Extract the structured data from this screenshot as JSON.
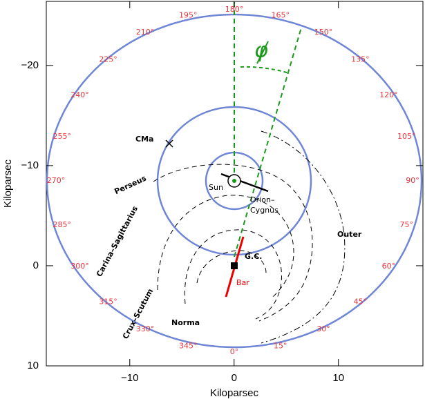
{
  "chart_data": {
    "type": "galaxy-map",
    "xlabel": "Kiloparsec",
    "ylabel": "Kiloparsec",
    "xlim": [
      -18,
      18.1
    ],
    "ylim": [
      -26.4,
      10
    ],
    "xticks": [
      {
        "value": -10,
        "label": "−10"
      },
      0,
      10
    ],
    "yticks": [
      {
        "value": -20,
        "label": "−20"
      },
      {
        "value": -10,
        "label": "−10"
      },
      0,
      10
    ],
    "longitudes": [
      "0°",
      "15°",
      "30°",
      "45°",
      "60°",
      "75°",
      "90°",
      "105°",
      "120°",
      "135°",
      "150°",
      "165°",
      "180°",
      "195°",
      "210°",
      "225°",
      "240°",
      "255°",
      "270°",
      "285°",
      "300°",
      "315°",
      "330°",
      "345°"
    ],
    "labels": {
      "cma": "CMa",
      "perseus": "Perseus",
      "sun": "Sun",
      "orion1": "Orion–",
      "orion2": "Cygnus",
      "carina": "Carina–Sagittarius",
      "crux": "Crux–Scutum",
      "norma": "Norma",
      "outer": "Outer",
      "gc": "G.C.",
      "bar": "Bar",
      "phi": "φ"
    }
  }
}
